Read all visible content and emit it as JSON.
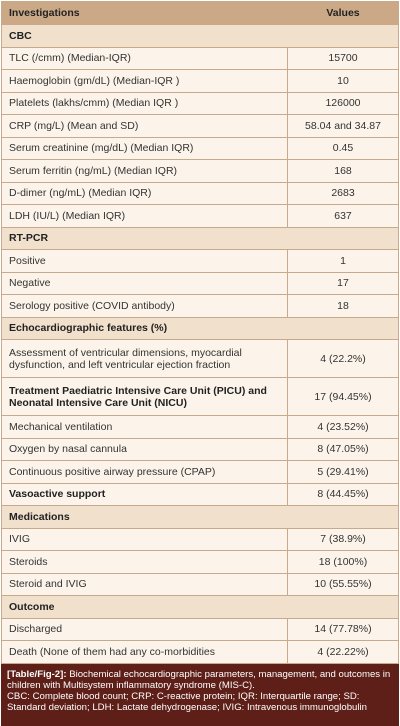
{
  "table": {
    "header": [
      "Investigations",
      "Values"
    ],
    "sections": [
      {
        "title": "CBC",
        "rows": [
          {
            "label": "TLC (/cmm) (Median-IQR)",
            "value": "15700"
          },
          {
            "label": "Haemoglobin (gm/dL) (Median-IQR )",
            "value": "10"
          },
          {
            "label": "Platelets (lakhs/cmm) (Median IQR )",
            "value": "126000"
          },
          {
            "label": "CRP (mg/L) (Mean and SD)",
            "value": "58.04 and 34.87"
          },
          {
            "label": "Serum creatinine (mg/dL) (Median IQR)",
            "value": "0.45"
          },
          {
            "label": "Serum ferritin (ng/mL) (Median IQR)",
            "value": "168"
          },
          {
            "label": "D-dimer (ng/mL) (Median IQR)",
            "value": "2683"
          },
          {
            "label": "LDH (IU/L) (Median IQR)",
            "value": "637"
          }
        ]
      },
      {
        "title": "RT-PCR",
        "rows": [
          {
            "label": "Positive",
            "value": "1"
          },
          {
            "label": "Negative",
            "value": "17"
          },
          {
            "label": "Serology positive (COVID antibody)",
            "value": "18"
          }
        ]
      },
      {
        "title": "Echocardiographic features (%)",
        "rows": [
          {
            "label": "Assessment of ventricular dimensions, myocardial dysfunction, and left ventricular ejection fraction",
            "value": "4 (22.2%)"
          },
          {
            "label": "Treatment Paediatric Intensive Care Unit (PICU) and Neonatal Intensive Care Unit (NICU)",
            "value": "17 (94.45%)",
            "bold": true
          },
          {
            "label": "Mechanical ventilation",
            "value": "4 (23.52%)"
          },
          {
            "label": "Oxygen by nasal cannula",
            "value": "8 (47.05%)"
          },
          {
            "label": "Continuous positive airway pressure (CPAP)",
            "value": "5 (29.41%)"
          },
          {
            "label": "Vasoactive support",
            "value": "8 (44.45%)",
            "bold": true
          }
        ]
      },
      {
        "title": "Medications",
        "rows": [
          {
            "label": "IVIG",
            "value": "7 (38.9%)"
          },
          {
            "label": "Steroids",
            "value": "18 (100%)"
          },
          {
            "label": "Steroid and IVIG",
            "value": "10 (55.55%)"
          }
        ]
      },
      {
        "title": "Outcome",
        "rows": [
          {
            "label": "Discharged",
            "value": "14 (77.78%)"
          },
          {
            "label": "Death (None of them had any co-morbidities",
            "value": "4 (22.22%)"
          }
        ]
      }
    ]
  },
  "caption": {
    "label": "[Table/Fig-2]:",
    "text": "Biochemical echocardiographic parameters, management, and outcomes in children with Multisystem inflammatory syndrome (MIS-C).",
    "abbreviations": "CBC: Complete blood count; CRP: C-reactive protein; IQR: Interquartile range; SD: Standard deviation; LDH: Lactate dehydrogenase; IVIG: Intravenous immunoglobulin"
  }
}
